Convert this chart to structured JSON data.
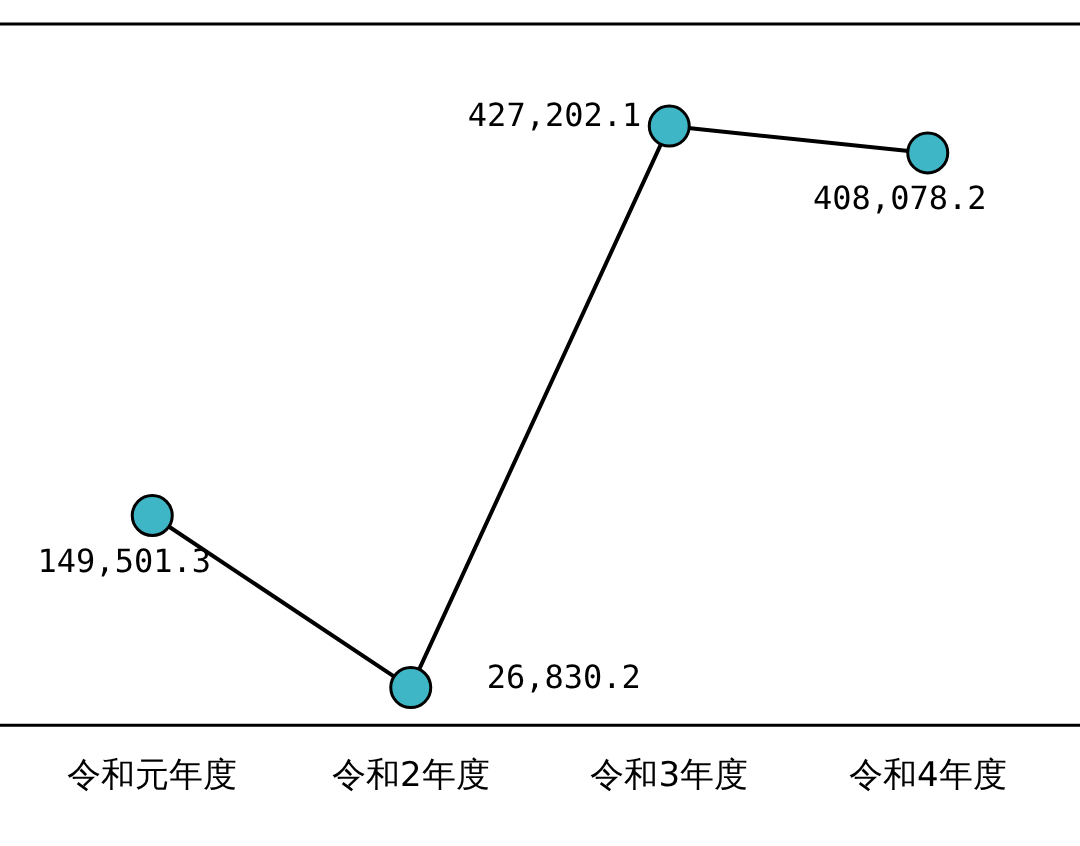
{
  "chart_data": {
    "type": "line",
    "categories": [
      "令和元年度",
      "令和2年度",
      "令和3年度",
      "令和4年度"
    ],
    "series": [
      {
        "color": "#3fb6c6",
        "values": [
          149501.3,
          26830.2,
          427202.1,
          408078.2
        ],
        "value_labels": [
          "149,501.3",
          "26,830.2",
          "427,202.1",
          "408,078.2"
        ]
      }
    ],
    "marker": "circle",
    "line_style": "solid",
    "grid": false,
    "legend": false,
    "tick_labels": "x"
  }
}
